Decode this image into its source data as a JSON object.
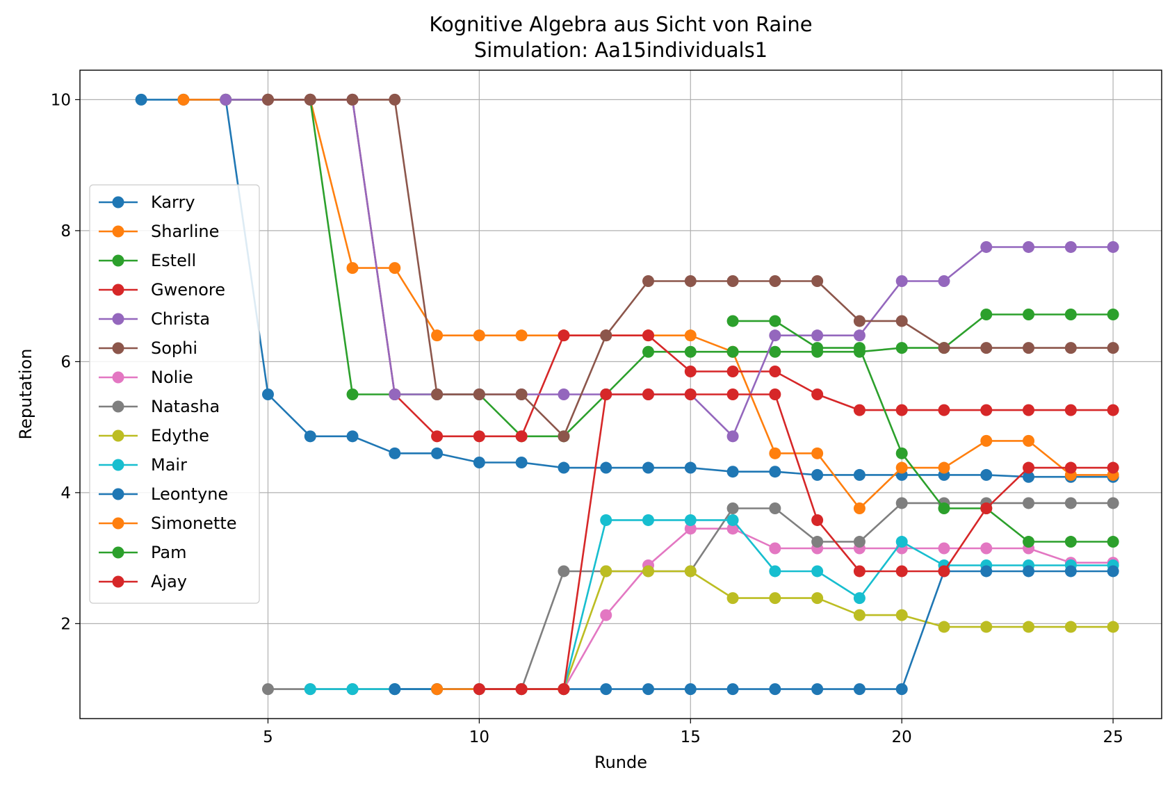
{
  "chart_data": {
    "type": "line",
    "title": "Kognitive Algebra aus Sicht von Raine",
    "subtitle": "Simulation: Aa15individuals1",
    "xlabel": "Runde",
    "ylabel": "Reputation",
    "xlim": [
      0.55,
      26.15
    ],
    "ylim": [
      0.55,
      10.45
    ],
    "xticks": [
      5,
      10,
      15,
      20,
      25
    ],
    "yticks": [
      2,
      4,
      6,
      8,
      10
    ],
    "grid": true,
    "legend_position": "center-left",
    "series": [
      {
        "name": "Karry",
        "color": "#1f77b4",
        "x": [
          2,
          3,
          4,
          5,
          6,
          7,
          8,
          9,
          10,
          11,
          12,
          13,
          14,
          15,
          16,
          17,
          18,
          19,
          20,
          21,
          22,
          23,
          24,
          25
        ],
        "y": [
          10,
          10,
          10,
          5.5,
          4.86,
          4.86,
          4.6,
          4.6,
          4.46,
          4.46,
          4.38,
          4.38,
          4.38,
          4.38,
          4.32,
          4.32,
          4.27,
          4.27,
          4.27,
          4.27,
          4.27,
          4.24,
          4.24,
          4.24
        ]
      },
      {
        "name": "Sharline",
        "color": "#ff7f0e",
        "x": [
          3,
          4,
          5,
          6,
          7,
          8,
          9,
          10,
          11,
          12,
          13,
          14,
          15,
          16,
          17,
          18,
          19,
          20,
          21,
          22,
          23,
          24,
          25
        ],
        "y": [
          10,
          10,
          10,
          10,
          7.43,
          7.43,
          6.4,
          6.4,
          6.4,
          6.4,
          6.4,
          6.4,
          6.4,
          6.15,
          4.6,
          4.6,
          3.76,
          4.38,
          4.38,
          4.79,
          4.79,
          4.27,
          4.27
        ]
      },
      {
        "name": "Estell",
        "color": "#2ca02c",
        "x": [
          4,
          5,
          6,
          7,
          8,
          9,
          10,
          11,
          12,
          13,
          14,
          15,
          16,
          17,
          18,
          19,
          20,
          21,
          22,
          23,
          24,
          25
        ],
        "y": [
          10,
          10,
          10,
          5.5,
          5.5,
          5.5,
          5.5,
          4.86,
          4.86,
          5.5,
          6.15,
          6.15,
          6.15,
          6.15,
          6.15,
          6.15,
          6.21,
          6.21,
          6.72,
          6.72,
          6.72,
          6.72
        ]
      },
      {
        "name": "Gwenore",
        "color": "#d62728",
        "x": [
          5,
          6,
          7,
          8,
          9,
          10,
          11,
          12,
          13,
          14,
          15,
          16,
          17,
          18,
          19,
          20,
          21,
          22,
          23,
          24,
          25
        ],
        "y": [
          10,
          10,
          10,
          5.5,
          4.86,
          4.86,
          4.86,
          6.4,
          6.4,
          6.4,
          5.85,
          5.85,
          5.85,
          5.5,
          5.26,
          5.26,
          5.26,
          5.26,
          5.26,
          5.26,
          5.26
        ]
      },
      {
        "name": "Christa",
        "color": "#9467bd",
        "x": [
          4,
          5,
          6,
          7,
          8,
          9,
          10,
          11,
          12,
          13,
          14,
          15,
          16,
          17,
          18,
          19,
          20,
          21,
          22,
          23,
          24,
          25
        ],
        "y": [
          10,
          10,
          10,
          10,
          5.5,
          5.5,
          5.5,
          5.5,
          5.5,
          5.5,
          5.5,
          5.5,
          4.86,
          6.4,
          6.4,
          6.4,
          7.23,
          7.23,
          7.75,
          7.75,
          7.75,
          7.75
        ]
      },
      {
        "name": "Sophi",
        "color": "#8c564b",
        "x": [
          5,
          6,
          7,
          8,
          9,
          10,
          11,
          12,
          13,
          14,
          15,
          16,
          17,
          18,
          19,
          20,
          21,
          22,
          23,
          24,
          25
        ],
        "y": [
          10,
          10,
          10,
          10,
          5.5,
          5.5,
          5.5,
          4.86,
          6.4,
          7.23,
          7.23,
          7.23,
          7.23,
          7.23,
          6.62,
          6.62,
          6.21,
          6.21,
          6.21,
          6.21,
          6.21
        ]
      },
      {
        "name": "Nolie",
        "color": "#e377c2",
        "x": [
          12,
          13,
          14,
          15,
          16,
          17,
          18,
          19,
          20,
          21,
          22,
          23,
          24,
          25
        ],
        "y": [
          1,
          2.13,
          2.89,
          3.45,
          3.45,
          3.15,
          3.15,
          3.15,
          3.15,
          3.15,
          3.15,
          3.15,
          2.93,
          2.93
        ]
      },
      {
        "name": "Natasha",
        "color": "#7f7f7f",
        "x": [
          5,
          6,
          7,
          8,
          9,
          10,
          11,
          12,
          13,
          14,
          15,
          16,
          17,
          18,
          19,
          20,
          21,
          22,
          23,
          24,
          25
        ],
        "y": [
          1,
          1,
          1,
          1,
          1,
          1,
          1,
          2.8,
          2.8,
          2.8,
          2.8,
          3.76,
          3.76,
          3.25,
          3.25,
          3.84,
          3.84,
          3.84,
          3.84,
          3.84,
          3.84
        ]
      },
      {
        "name": "Edythe",
        "color": "#bcbd22",
        "x": [
          12,
          13,
          14,
          15,
          16,
          17,
          18,
          19,
          20,
          21,
          22,
          23,
          24,
          25
        ],
        "y": [
          1,
          2.8,
          2.8,
          2.8,
          2.39,
          2.39,
          2.39,
          2.13,
          2.13,
          1.95,
          1.95,
          1.95,
          1.95,
          1.95
        ]
      },
      {
        "name": "Mair",
        "color": "#17becf",
        "x": [
          6,
          7,
          8,
          9,
          10,
          11,
          12,
          13,
          14,
          15,
          16,
          17,
          18,
          19,
          20,
          21,
          22,
          23,
          24,
          25
        ],
        "y": [
          1,
          1,
          1,
          1,
          1,
          1,
          1,
          3.58,
          3.58,
          3.58,
          3.58,
          2.8,
          2.8,
          2.39,
          3.25,
          2.89,
          2.89,
          2.89,
          2.89,
          2.89
        ]
      },
      {
        "name": "Leontyne",
        "color": "#1f77b4",
        "x": [
          8,
          9,
          10,
          11,
          12,
          13,
          14,
          15,
          16,
          17,
          18,
          19,
          20,
          21,
          22,
          23,
          24,
          25
        ],
        "y": [
          1,
          1,
          1,
          1,
          1,
          1,
          1,
          1,
          1,
          1,
          1,
          1,
          1,
          2.8,
          2.8,
          2.8,
          2.8,
          2.8
        ]
      },
      {
        "name": "Simonette",
        "color": "#ff7f0e",
        "x": [
          9,
          10,
          11,
          12
        ],
        "y": [
          1,
          1,
          1,
          1
        ]
      },
      {
        "name": "Pam",
        "color": "#2ca02c",
        "x": [
          16,
          17,
          18,
          19,
          20,
          21,
          22,
          23,
          24,
          25
        ],
        "y": [
          6.62,
          6.62,
          6.21,
          6.21,
          4.6,
          3.76,
          3.76,
          3.25,
          3.25,
          3.25
        ]
      },
      {
        "name": "Ajay",
        "color": "#d62728",
        "x": [
          10,
          11,
          12,
          13,
          14,
          15,
          16,
          17,
          18,
          19,
          20,
          21,
          22,
          23,
          24,
          25
        ],
        "y": [
          1,
          1,
          1,
          5.5,
          5.5,
          5.5,
          5.5,
          5.5,
          3.58,
          2.8,
          2.8,
          2.8,
          3.76,
          4.38,
          4.38,
          4.38
        ]
      }
    ]
  }
}
